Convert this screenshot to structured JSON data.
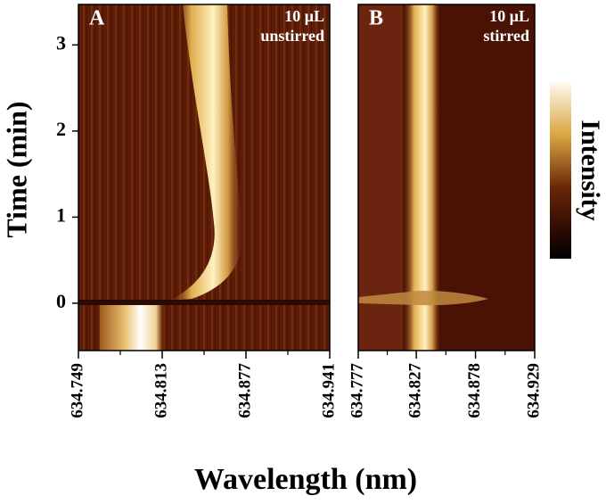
{
  "chart_data": [
    {
      "type": "heatmap",
      "panel_label": "A",
      "annotation": [
        "10 μL",
        "unstirred"
      ],
      "xlim": [
        634.749,
        634.941
      ],
      "xticks": [
        634.749,
        634.813,
        634.877,
        634.941
      ],
      "ylim": [
        -0.55,
        3.47
      ],
      "yticks": [
        0,
        1,
        2,
        3
      ],
      "ylabel": "Time (min)"
    },
    {
      "type": "heatmap",
      "panel_label": "B",
      "annotation": [
        "10 μL",
        "stirred"
      ],
      "xlim": [
        634.777,
        634.929
      ],
      "xticks": [
        634.777,
        634.827,
        634.878,
        634.929
      ],
      "ylim": [
        -0.55,
        3.47
      ]
    }
  ],
  "figure": {
    "xlabel": "Wavelength (nm)",
    "colorbar_label": "Intensity"
  }
}
